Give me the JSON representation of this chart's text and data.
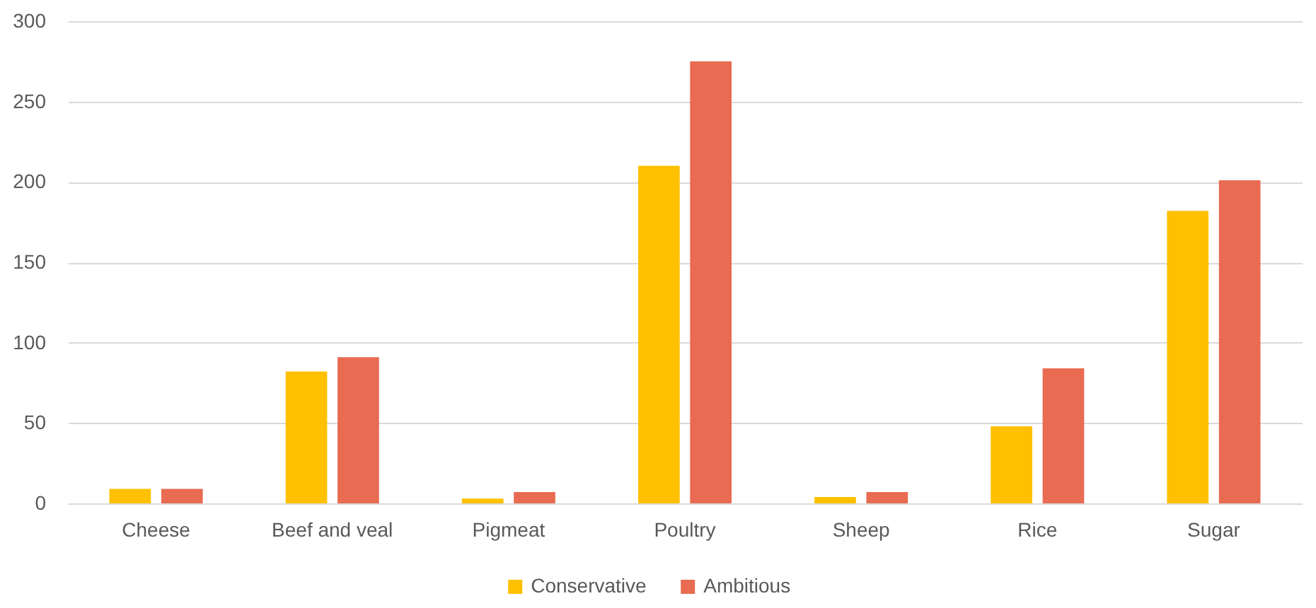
{
  "chart_data": {
    "type": "bar",
    "categories": [
      "Cheese",
      "Beef and veal",
      "Pigmeat",
      "Poultry",
      "Sheep",
      "Rice",
      "Sugar"
    ],
    "series": [
      {
        "name": "Conservative",
        "color": "#ffc000",
        "values": [
          9,
          82,
          3,
          210,
          4,
          48,
          182
        ]
      },
      {
        "name": "Ambitious",
        "color": "#e86b52",
        "values": [
          9,
          91,
          7,
          275,
          7,
          84,
          201
        ]
      }
    ],
    "ylim": [
      0,
      300
    ],
    "yticks": [
      0,
      50,
      100,
      150,
      200,
      250,
      300
    ],
    "grid": "y",
    "legend": "bottom"
  }
}
